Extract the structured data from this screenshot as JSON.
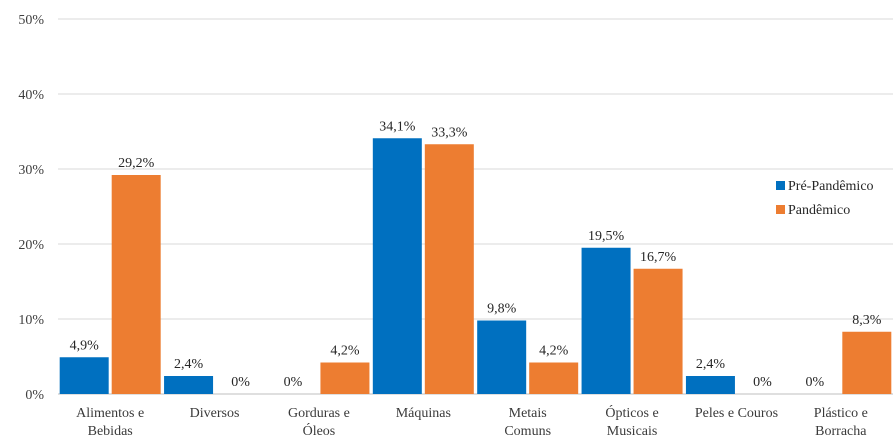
{
  "chart_data": {
    "type": "bar",
    "title": "",
    "xlabel": "",
    "ylabel": "",
    "ylim": [
      0,
      50
    ],
    "y_ticks": [
      "0%",
      "10%",
      "20%",
      "30%",
      "40%",
      "50%"
    ],
    "grid": true,
    "legend_position": "right",
    "categories": [
      [
        "Alimentos e",
        "Bebidas"
      ],
      [
        "Diversos"
      ],
      [
        "Gorduras e",
        "Óleos"
      ],
      [
        "Máquinas"
      ],
      [
        "Metais",
        "Comuns"
      ],
      [
        "Ópticos e",
        "Musicais"
      ],
      [
        "Peles e Couros"
      ],
      [
        "Plástico e",
        "Borracha"
      ]
    ],
    "series": [
      {
        "name": "Pré-Pandêmico",
        "color": "#0070C0",
        "values": [
          4.9,
          2.4,
          0,
          34.1,
          9.8,
          19.5,
          2.4,
          0
        ],
        "labels": [
          "4,9%",
          "2,4%",
          "0%",
          "34,1%",
          "9,8%",
          "19,5%",
          "2,4%",
          "0%"
        ]
      },
      {
        "name": "Pandêmico",
        "color": "#ED7D31",
        "values": [
          29.2,
          0,
          4.2,
          33.3,
          4.2,
          16.7,
          0,
          8.3
        ],
        "labels": [
          "29,2%",
          "0%",
          "4,2%",
          "33,3%",
          "4,2%",
          "16,7%",
          "0%",
          "8,3%"
        ]
      }
    ]
  }
}
